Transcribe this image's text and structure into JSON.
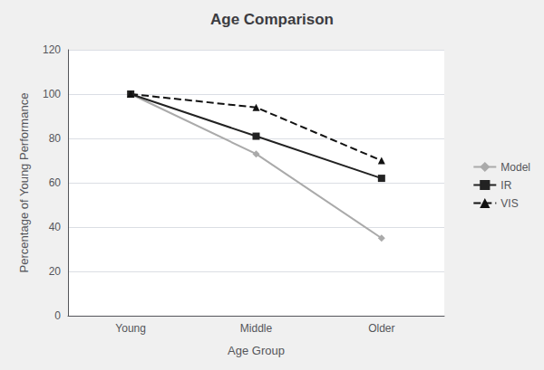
{
  "chart_data": {
    "type": "line",
    "title": "Age Comparison",
    "xlabel": "Age Group",
    "ylabel": "Percentage of Young Performance",
    "categories": [
      "Young",
      "Middle",
      "Older"
    ],
    "series": [
      {
        "name": "Model",
        "color": "#aaaaaa",
        "marker": "diamond",
        "line_style": "solid",
        "values": [
          100,
          73,
          35
        ]
      },
      {
        "name": "IR",
        "color": "#222222",
        "marker": "square",
        "line_style": "solid",
        "values": [
          100,
          81,
          62
        ]
      },
      {
        "name": "VIS",
        "color": "#111111",
        "marker": "triangle",
        "line_style": "dashed",
        "values": [
          100,
          94,
          70
        ]
      }
    ],
    "ylim": [
      0,
      120
    ],
    "yticks": [
      0,
      20,
      40,
      60,
      80,
      100,
      120
    ],
    "grid": true,
    "legend": "right"
  }
}
